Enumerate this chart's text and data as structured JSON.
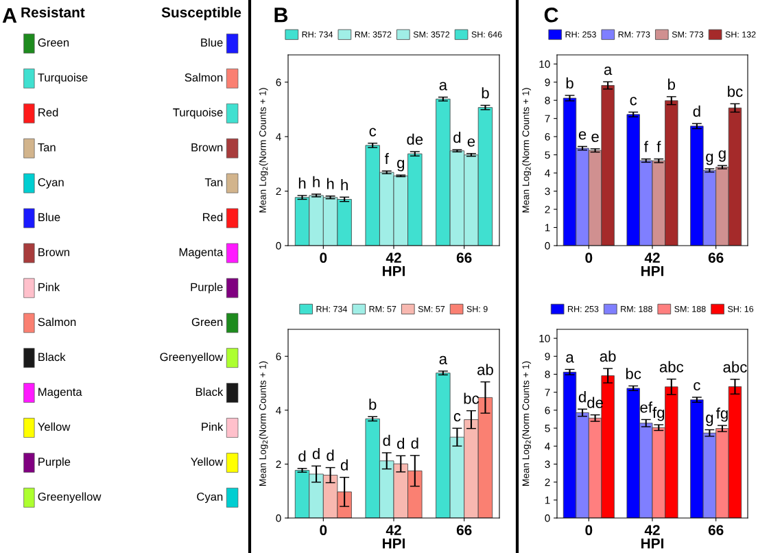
{
  "chart_data": [
    {
      "type": "other",
      "annotations": [
        "A"
      ],
      "title": "Resistant",
      "categories": [
        "Green",
        "Turquoise",
        "Red",
        "Tan",
        "Cyan",
        "Blue",
        "Brown",
        "Pink",
        "Salmon",
        "Black",
        "Magenta",
        "Yellow",
        "Purple",
        "Greenyellow"
      ],
      "colors": [
        "#1e8b1e",
        "#40e0d0",
        "#ff1a1a",
        "#d2b48c",
        "#00ced1",
        "#1a1aff",
        "#a83c3c",
        "#ffc0cb",
        "#fa8072",
        "#1a1a1a",
        "#ff1aff",
        "#ffff00",
        "#800080",
        "#adff2f"
      ]
    },
    {
      "type": "other",
      "title": "Susceptible",
      "categories": [
        "Blue",
        "Salmon",
        "Turquoise",
        "Brown",
        "Tan",
        "Red",
        "Magenta",
        "Purple",
        "Green",
        "Greenyellow",
        "Black",
        "Pink",
        "Yellow",
        "Cyan"
      ],
      "colors": [
        "#1a1aff",
        "#fa8072",
        "#40e0d0",
        "#a83c3c",
        "#d2b48c",
        "#ff1a1a",
        "#ff1aff",
        "#800080",
        "#1e8b1e",
        "#adff2f",
        "#1a1a1a",
        "#ffc0cb",
        "#ffff00",
        "#00ced1"
      ]
    },
    {
      "type": "bar",
      "annotations": [
        "B"
      ],
      "xlabel": "HPI",
      "ylabel": "Mean Log$_{2}$(Norm Counts + 1)",
      "categories": [
        "0",
        "42",
        "66"
      ],
      "ylim": [
        0,
        7
      ],
      "yticks": [
        0,
        2,
        4,
        6
      ],
      "legend": "top",
      "grid": false,
      "series": [
        {
          "name": "RH: 734",
          "color": "#40e0d0",
          "values": [
            1.77,
            3.68,
            5.38
          ],
          "errors": [
            0.07,
            0.08,
            0.07
          ],
          "value_labels": [
            "h",
            "c",
            "a"
          ]
        },
        {
          "name": "RM: 3572",
          "color": "#a0eee6",
          "values": [
            1.84,
            2.69,
            3.48
          ],
          "errors": [
            0.05,
            0.05,
            0.04
          ],
          "value_labels": [
            "h",
            "f",
            "d"
          ]
        },
        {
          "name": "SM: 3572",
          "color": "#a0eee6",
          "values": [
            1.77,
            2.56,
            3.33
          ],
          "errors": [
            0.05,
            0.03,
            0.05
          ],
          "value_labels": [
            "h",
            "g",
            "e"
          ]
        },
        {
          "name": "SH: 646",
          "color": "#40e0d0",
          "values": [
            1.7,
            3.37,
            5.07
          ],
          "errors": [
            0.08,
            0.08,
            0.08
          ],
          "value_labels": [
            "h",
            "de",
            "b"
          ]
        }
      ]
    },
    {
      "type": "bar",
      "xlabel": "HPI",
      "ylabel": "Mean Log$_{2}$(Norm Counts + 1)",
      "categories": [
        "0",
        "42",
        "66"
      ],
      "ylim": [
        0,
        7
      ],
      "yticks": [
        0,
        2,
        4,
        6
      ],
      "legend": "top",
      "grid": false,
      "series": [
        {
          "name": "RH: 734",
          "color": "#40e0d0",
          "values": [
            1.77,
            3.68,
            5.38
          ],
          "errors": [
            0.07,
            0.08,
            0.07
          ],
          "value_labels": [
            "d",
            "b",
            "a"
          ]
        },
        {
          "name": "RM: 57",
          "color": "#a0eee6",
          "values": [
            1.63,
            2.12,
            3.0
          ],
          "errors": [
            0.3,
            0.3,
            0.33
          ],
          "value_labels": [
            "d",
            "d",
            "c"
          ]
        },
        {
          "name": "SM: 57",
          "color": "#f8b8b0",
          "values": [
            1.59,
            2.01,
            3.65
          ],
          "errors": [
            0.28,
            0.3,
            0.33
          ],
          "value_labels": [
            "d",
            "d",
            "bc"
          ]
        },
        {
          "name": "SH: 9",
          "color": "#fa8072",
          "values": [
            0.97,
            1.75,
            4.47
          ],
          "errors": [
            0.54,
            0.57,
            0.58
          ],
          "value_labels": [
            "d",
            "d",
            "ab"
          ]
        }
      ]
    },
    {
      "type": "bar",
      "annotations": [
        "C"
      ],
      "xlabel": "HPI",
      "ylabel": "Mean Log$_{2}$(Norm Counts + 1)",
      "categories": [
        "0",
        "42",
        "66"
      ],
      "ylim": [
        0,
        10.5
      ],
      "yticks": [
        0,
        1,
        2,
        3,
        4,
        5,
        6,
        7,
        8,
        9,
        10
      ],
      "legend": "top",
      "grid": false,
      "series": [
        {
          "name": "RH: 253",
          "color": "#0000ff",
          "values": [
            8.12,
            7.22,
            6.58
          ],
          "errors": [
            0.15,
            0.13,
            0.14
          ],
          "value_labels": [
            "b",
            "c",
            "d"
          ]
        },
        {
          "name": "RM: 773",
          "color": "#7f7fff",
          "values": [
            5.36,
            4.68,
            4.14
          ],
          "errors": [
            0.1,
            0.09,
            0.09
          ],
          "value_labels": [
            "e",
            "f",
            "g"
          ]
        },
        {
          "name": "SM: 773",
          "color": "#d09090",
          "values": [
            5.24,
            4.67,
            4.32
          ],
          "errors": [
            0.09,
            0.1,
            0.09
          ],
          "value_labels": [
            "e",
            "f",
            "g"
          ]
        },
        {
          "name": "SH: 132",
          "color": "#a52a2a",
          "values": [
            8.82,
            7.98,
            7.58
          ],
          "errors": [
            0.2,
            0.22,
            0.23
          ],
          "value_labels": [
            "a",
            "b",
            "bc"
          ]
        }
      ]
    },
    {
      "type": "bar",
      "xlabel": "HPI",
      "ylabel": "Mean Log$_{2}$(Norm Counts + 1)",
      "categories": [
        "0",
        "42",
        "66"
      ],
      "ylim": [
        0,
        10.5
      ],
      "yticks": [
        0,
        1,
        2,
        3,
        4,
        5,
        6,
        7,
        8,
        9,
        10
      ],
      "legend": "top",
      "grid": false,
      "series": [
        {
          "name": "RH: 253",
          "color": "#0000ff",
          "values": [
            8.12,
            7.22,
            6.58
          ],
          "errors": [
            0.15,
            0.13,
            0.14
          ],
          "value_labels": [
            "a",
            "bc",
            "c"
          ]
        },
        {
          "name": "RM: 188",
          "color": "#7f7fff",
          "values": [
            5.86,
            5.28,
            4.73
          ],
          "errors": [
            0.2,
            0.2,
            0.18
          ],
          "value_labels": [
            "d",
            "ef",
            "g"
          ]
        },
        {
          "name": "SM: 188",
          "color": "#ff7f7f",
          "values": [
            5.56,
            5.03,
            4.98
          ],
          "errors": [
            0.18,
            0.16,
            0.17
          ],
          "value_labels": [
            "de",
            "fg",
            "fg"
          ]
        },
        {
          "name": "SH: 16",
          "color": "#ff0000",
          "values": [
            7.92,
            7.3,
            7.31
          ],
          "errors": [
            0.4,
            0.43,
            0.41
          ],
          "value_labels": [
            "ab",
            "abc",
            "abc"
          ]
        }
      ]
    }
  ]
}
